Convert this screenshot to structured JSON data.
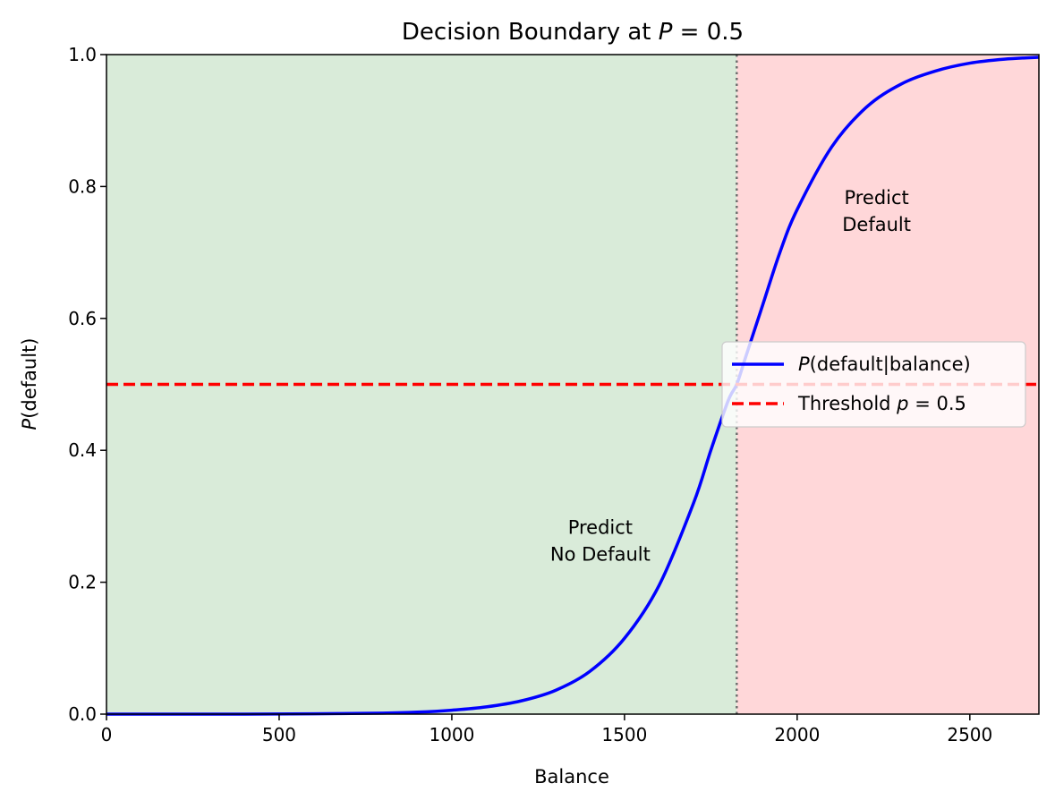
{
  "chart_data": {
    "type": "line",
    "title": "Decision Boundary at P = 0.5",
    "title_parts": {
      "prefix": "Decision Boundary at ",
      "var": "P",
      "suffix": " = 0.5"
    },
    "xlabel": "Balance",
    "ylabel_parts": {
      "var": "P",
      "suffix": "(default)"
    },
    "xlim": [
      0,
      2700
    ],
    "ylim": [
      0,
      1
    ],
    "x_ticks": [
      0,
      500,
      1000,
      1500,
      2000,
      2500
    ],
    "x_tick_labels": [
      "0",
      "500",
      "1000",
      "1500",
      "2000",
      "2500"
    ],
    "y_ticks": [
      0,
      0.2,
      0.4,
      0.6,
      0.8,
      1.0
    ],
    "y_tick_labels": [
      "0.0",
      "0.2",
      "0.4",
      "0.6",
      "0.8",
      "1.0"
    ],
    "grid": false,
    "series": [
      {
        "name": "P(default|balance)",
        "name_parts": {
          "var": "P",
          "suffix": "(default|balance)"
        },
        "color": "#0000ff",
        "style": "solid",
        "x": [
          0,
          200,
          400,
          600,
          800,
          900,
          1000,
          1100,
          1200,
          1300,
          1400,
          1500,
          1600,
          1700,
          1750,
          1800,
          1825,
          1850,
          1900,
          1950,
          2000,
          2100,
          2200,
          2300,
          2400,
          2500,
          2600,
          2700
        ],
        "y": [
          0.0,
          0.0,
          0.0,
          0.0005,
          0.0015,
          0.003,
          0.006,
          0.011,
          0.02,
          0.036,
          0.065,
          0.115,
          0.195,
          0.32,
          0.4,
          0.475,
          0.5,
          0.54,
          0.62,
          0.7,
          0.765,
          0.86,
          0.92,
          0.955,
          0.975,
          0.987,
          0.993,
          0.996
        ]
      },
      {
        "name": "Threshold p = 0.5",
        "name_parts": {
          "prefix": "Threshold ",
          "var": "p",
          "suffix": " = 0.5"
        },
        "color": "#ff0000",
        "style": "dashed",
        "x": [
          0,
          2700
        ],
        "y": [
          0.5,
          0.5
        ]
      }
    ],
    "decision_boundary_x": 1825,
    "regions": [
      {
        "x_range": [
          0,
          1825
        ],
        "color": "#d9ebd9",
        "label_lines": [
          "Predict",
          "No Default"
        ],
        "label_x": 1430,
        "label_y": 0.265
      },
      {
        "x_range": [
          1825,
          2700
        ],
        "color": "#ffd7d9",
        "label_lines": [
          "Predict",
          "Default"
        ],
        "label_x": 2230,
        "label_y": 0.765
      }
    ],
    "legend_position": "center-right"
  }
}
